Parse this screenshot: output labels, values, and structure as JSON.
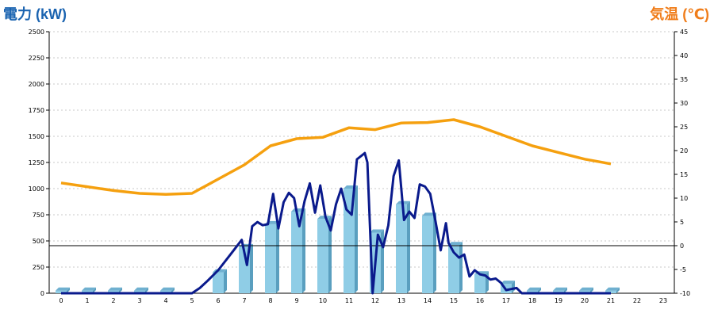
{
  "chart_data": {
    "type": "bar",
    "ylabel_left": "電力 (kW)",
    "ylabel_right": "気温 (℃)",
    "colors": {
      "left_label": "#1a63b0",
      "right_label": "#f07d1a",
      "bar_front": "#8fcde6",
      "bar_side": "#5a9fbf",
      "bar_top": "#6fb0d0",
      "power_line": "#0a1a8c",
      "temp_line": "#f5a00f",
      "grid": "#c8c8c8",
      "zero_line": "#000000"
    },
    "x_ticks": [
      "0",
      "1",
      "2",
      "3",
      "4",
      "5",
      "6",
      "7",
      "8",
      "9",
      "10",
      "11",
      "12",
      "13",
      "14",
      "15",
      "16",
      "17",
      "18",
      "19",
      "20",
      "21",
      "22",
      "23"
    ],
    "y_left_ticks": [
      "0",
      "250",
      "500",
      "750",
      "1000",
      "1250",
      "1500",
      "1750",
      "2000",
      "2250",
      "2500"
    ],
    "y_right_ticks": [
      "-10",
      "-5",
      "0",
      "5",
      "10",
      "15",
      "20",
      "25",
      "30",
      "35",
      "40",
      "45"
    ],
    "ylim_left": [
      0,
      2500
    ],
    "ylim_right": [
      -10,
      45
    ],
    "grid": true,
    "bars": {
      "hours": [
        0,
        1,
        2,
        3,
        4,
        5,
        6,
        7,
        8,
        9,
        10,
        11,
        12,
        13,
        14,
        15,
        16,
        17,
        18,
        19,
        20,
        21
      ],
      "values": [
        25,
        25,
        25,
        25,
        25,
        0,
        200,
        440,
        660,
        780,
        710,
        1000,
        580,
        850,
        740,
        460,
        180,
        90,
        25,
        25,
        25,
        25
      ]
    },
    "power_line": {
      "x": [
        0,
        1,
        2,
        3,
        4,
        5,
        5.3,
        5.6,
        6,
        6.5,
        6.9,
        7.1,
        7.3,
        7.5,
        7.7,
        7.9,
        8.1,
        8.3,
        8.5,
        8.7,
        8.9,
        9.1,
        9.3,
        9.5,
        9.7,
        9.9,
        10.1,
        10.3,
        10.5,
        10.7,
        10.9,
        11.1,
        11.3,
        11.5,
        11.6,
        11.7,
        11.9,
        12.1,
        12.3,
        12.5,
        12.7,
        12.9,
        13.1,
        13.3,
        13.5,
        13.7,
        13.9,
        14.1,
        14.3,
        14.5,
        14.7,
        14.8,
        15,
        15.2,
        15.4,
        15.6,
        15.8,
        16,
        16.2,
        16.4,
        16.6,
        16.8,
        17,
        17.2,
        17.4,
        17.6,
        18,
        19,
        20,
        21
      ],
      "values": [
        0,
        0,
        0,
        0,
        0,
        0,
        50,
        120,
        220,
        380,
        510,
        270,
        640,
        680,
        650,
        660,
        950,
        620,
        870,
        960,
        910,
        640,
        880,
        1050,
        770,
        1030,
        730,
        600,
        850,
        1000,
        800,
        750,
        1280,
        1320,
        1340,
        1250,
        0,
        560,
        440,
        650,
        1120,
        1270,
        700,
        780,
        720,
        1040,
        1020,
        950,
        690,
        410,
        670,
        480,
        390,
        340,
        370,
        160,
        220,
        180,
        170,
        130,
        140,
        100,
        30,
        40,
        50,
        0,
        0,
        0,
        0,
        0
      ]
    },
    "temp_line": {
      "x": [
        0,
        1,
        2,
        3,
        4,
        5,
        6,
        7,
        8,
        9,
        10,
        11,
        12,
        13,
        14,
        15,
        16,
        17,
        18,
        19,
        20,
        21
      ],
      "values": [
        13.2,
        12.4,
        11.6,
        11.0,
        10.8,
        11.0,
        14.0,
        17.0,
        21.0,
        22.5,
        22.8,
        24.8,
        24.4,
        25.8,
        25.9,
        26.5,
        25.0,
        23.0,
        21.0,
        19.6,
        18.2,
        17.2
      ]
    }
  }
}
